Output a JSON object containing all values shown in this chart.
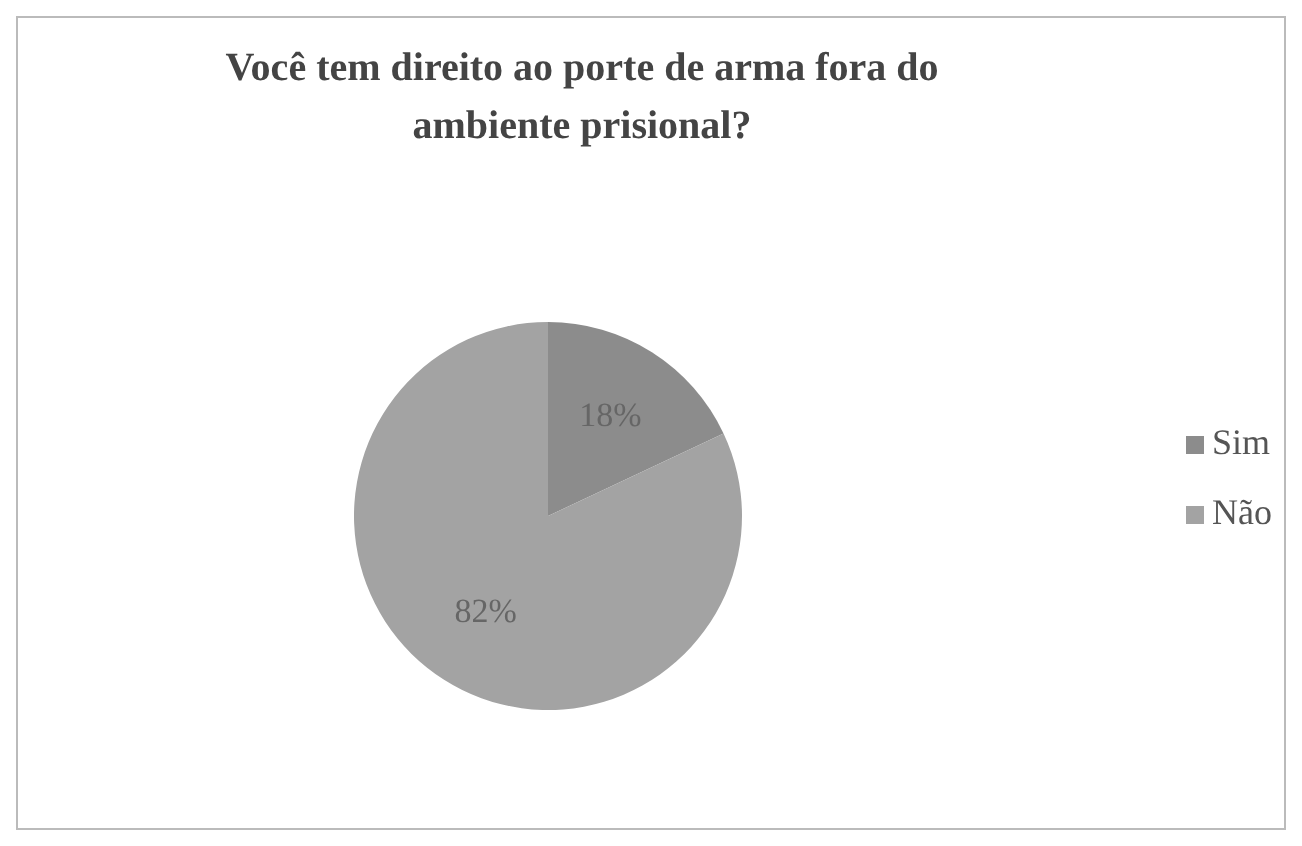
{
  "chart_data": {
    "type": "pie",
    "title": "Você tem direito ao porte de arma fora do ambiente prisional?",
    "categories": [
      "Sim",
      "Não"
    ],
    "values": [
      18,
      82
    ],
    "colors": [
      "#8c8c8c",
      "#a3a3a3"
    ],
    "value_labels": [
      "18%",
      "82%"
    ],
    "legend": "right"
  }
}
